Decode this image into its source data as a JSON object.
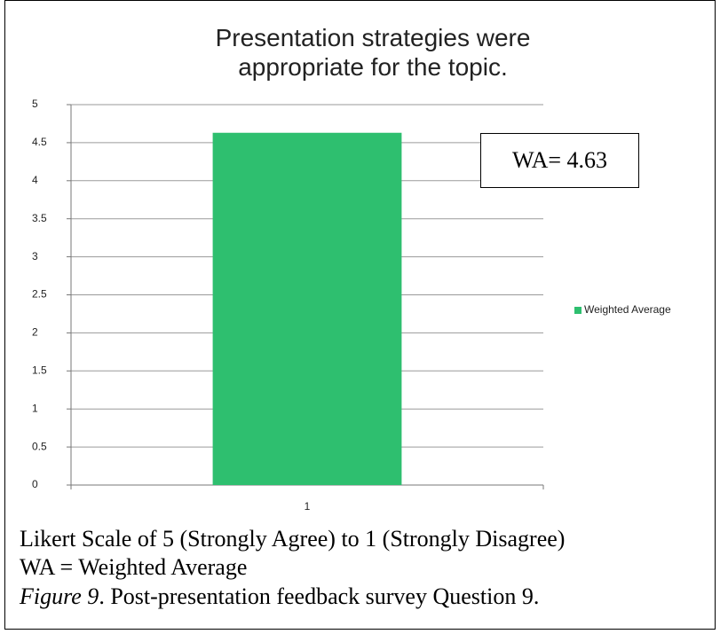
{
  "chart_data": {
    "type": "bar",
    "title": "Presentation strategies were appropriate for the topic.",
    "categories": [
      "1"
    ],
    "series": [
      {
        "name": "Weighted Average",
        "color": "#2ebf6f",
        "values": [
          4.63
        ]
      }
    ],
    "ylim": [
      0,
      5
    ],
    "yticks": [
      0,
      0.5,
      1,
      1.5,
      2,
      2.5,
      3,
      3.5,
      4,
      4.5,
      5
    ],
    "grid": true,
    "legend": "right",
    "annotation": "WA= 4.63"
  },
  "caption": {
    "scale_note": "Likert Scale of 5 (Strongly Agree) to 1 (Strongly Disagree)",
    "abbreviation": "WA = Weighted Average",
    "figure_label": "Figure 9",
    "figure_text": ". Post-presentation feedback survey Question 9."
  }
}
